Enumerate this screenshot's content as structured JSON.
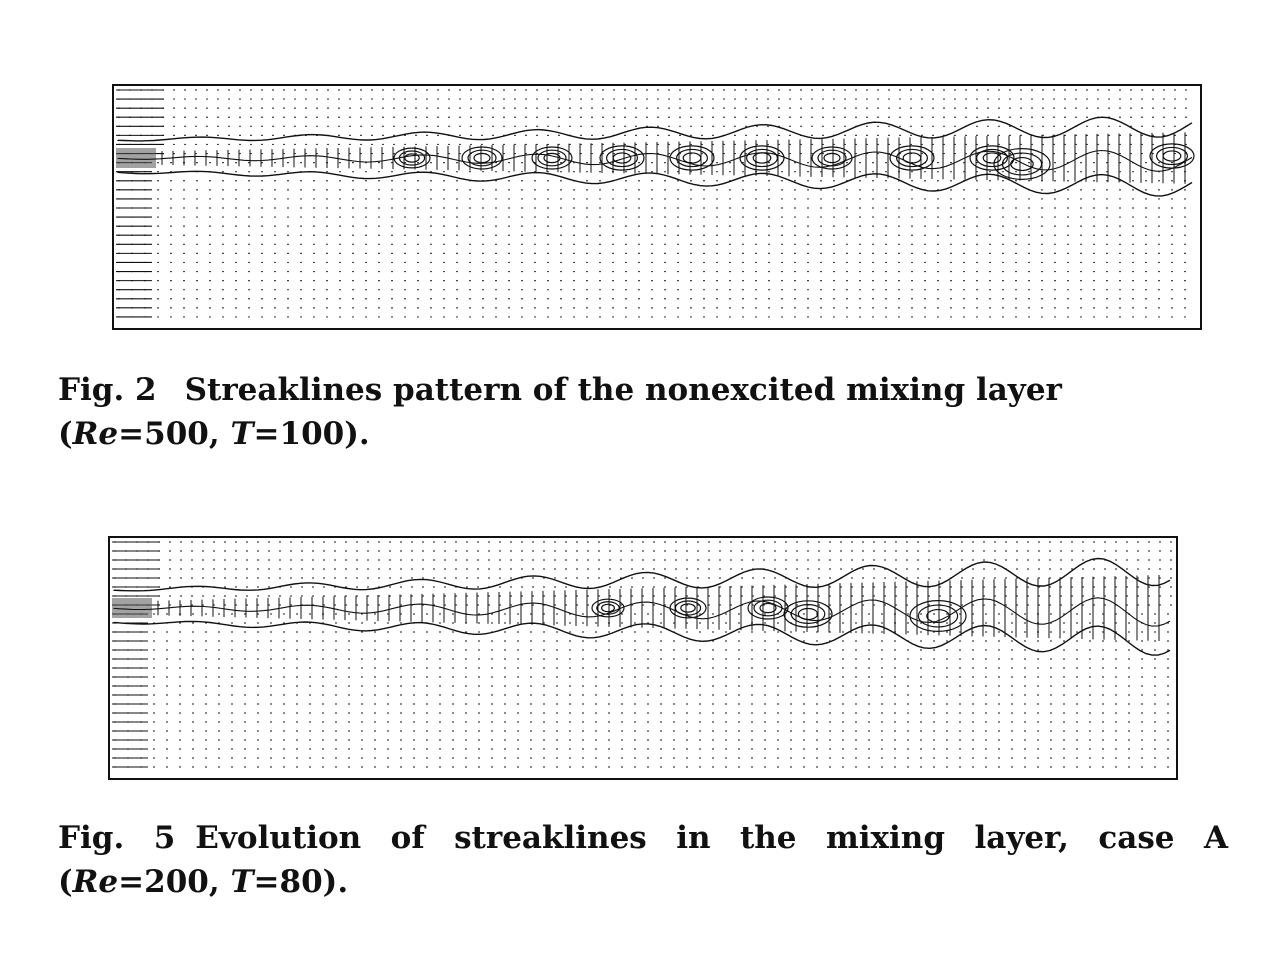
{
  "figures": [
    {
      "id": "fig2",
      "label": "Fig. 2",
      "caption_prefix": "Streaklines pattern of the nonexcited mixing layer (",
      "re_symbol": "Re",
      "re_value": "=500,",
      "t_symbol": "T",
      "t_value": "=100)."
    },
    {
      "id": "fig5",
      "label": "Fig. 5",
      "caption_prefix": "Evolution of streaklines in the mixing layer, case A (",
      "re_symbol": "Re",
      "re_value": "=200,",
      "t_symbol": "T",
      "t_value": "=80)."
    }
  ],
  "colors": {
    "ink": "#111111",
    "paper": "#ffffff",
    "grid": "#444444"
  }
}
